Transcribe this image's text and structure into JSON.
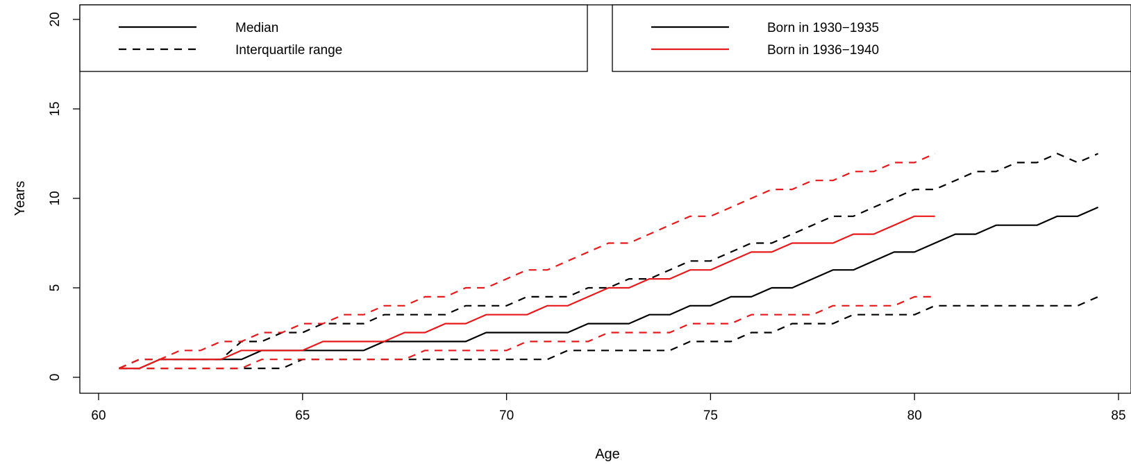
{
  "chart_data": {
    "type": "line",
    "title": "",
    "xlabel": "Age",
    "ylabel": "Years",
    "xlim": [
      60,
      85
    ],
    "ylim": [
      0,
      20
    ],
    "xticks": [
      "60",
      "65",
      "70",
      "75",
      "80",
      "85"
    ],
    "yticks": [
      "0",
      "5",
      "10",
      "15",
      "20"
    ],
    "grid": false,
    "colors": {
      "cohort_1930_1935": "#000000",
      "cohort_1936_1940": "#e8191b"
    },
    "legends": [
      {
        "position": "top-left",
        "entries": [
          {
            "label": "Median",
            "style": "solid",
            "color": "#000000"
          },
          {
            "label": "Interquartile range",
            "style": "dashed",
            "color": "#000000"
          }
        ]
      },
      {
        "position": "top-right",
        "entries": [
          {
            "label": "Born in 1930−1935",
            "style": "solid",
            "color": "#000000"
          },
          {
            "label": "Born in 1936−1940",
            "style": "solid",
            "color": "#e8191b"
          }
        ]
      }
    ],
    "series": [
      {
        "key": "c1930_median",
        "color": "#000000",
        "dash": "solid",
        "points": [
          [
            60.5,
            0.5
          ],
          [
            61,
            0.5
          ],
          [
            61.5,
            1
          ],
          [
            62,
            1
          ],
          [
            62.5,
            1
          ],
          [
            63,
            1
          ],
          [
            63.5,
            1
          ],
          [
            64,
            1.5
          ],
          [
            64.5,
            1.5
          ],
          [
            65,
            1.5
          ],
          [
            65.5,
            1.5
          ],
          [
            66,
            1.5
          ],
          [
            66.5,
            1.5
          ],
          [
            67,
            2
          ],
          [
            67.5,
            2
          ],
          [
            68,
            2
          ],
          [
            68.5,
            2
          ],
          [
            69,
            2
          ],
          [
            69.5,
            2.5
          ],
          [
            70,
            2.5
          ],
          [
            70.5,
            2.5
          ],
          [
            71,
            2.5
          ],
          [
            71.5,
            2.5
          ],
          [
            72,
            3
          ],
          [
            72.5,
            3
          ],
          [
            73,
            3
          ],
          [
            73.5,
            3.5
          ],
          [
            74,
            3.5
          ],
          [
            74.5,
            4
          ],
          [
            75,
            4
          ],
          [
            75.5,
            4.5
          ],
          [
            76,
            4.5
          ],
          [
            76.5,
            5
          ],
          [
            77,
            5
          ],
          [
            77.5,
            5.5
          ],
          [
            78,
            6
          ],
          [
            78.5,
            6
          ],
          [
            79,
            6.5
          ],
          [
            79.5,
            7
          ],
          [
            80,
            7
          ],
          [
            80.5,
            7.5
          ],
          [
            81,
            8
          ],
          [
            81.5,
            8
          ],
          [
            82,
            8.5
          ],
          [
            82.5,
            8.5
          ],
          [
            83,
            8.5
          ],
          [
            83.5,
            9
          ],
          [
            84,
            9
          ],
          [
            84.5,
            9.5
          ]
        ]
      },
      {
        "key": "c1930_q1",
        "color": "#000000",
        "dash": "dashed",
        "points": [
          [
            60.5,
            0.5
          ],
          [
            61,
            0.5
          ],
          [
            61.5,
            0.5
          ],
          [
            62,
            0.5
          ],
          [
            62.5,
            0.5
          ],
          [
            63,
            0.5
          ],
          [
            63.5,
            0.5
          ],
          [
            64,
            0.5
          ],
          [
            64.5,
            0.5
          ],
          [
            65,
            1
          ],
          [
            65.5,
            1
          ],
          [
            66,
            1
          ],
          [
            66.5,
            1
          ],
          [
            67,
            1
          ],
          [
            67.5,
            1
          ],
          [
            68,
            1
          ],
          [
            68.5,
            1
          ],
          [
            69,
            1
          ],
          [
            69.5,
            1
          ],
          [
            70,
            1
          ],
          [
            70.5,
            1
          ],
          [
            71,
            1
          ],
          [
            71.5,
            1.5
          ],
          [
            72,
            1.5
          ],
          [
            72.5,
            1.5
          ],
          [
            73,
            1.5
          ],
          [
            73.5,
            1.5
          ],
          [
            74,
            1.5
          ],
          [
            74.5,
            2
          ],
          [
            75,
            2
          ],
          [
            75.5,
            2
          ],
          [
            76,
            2.5
          ],
          [
            76.5,
            2.5
          ],
          [
            77,
            3
          ],
          [
            77.5,
            3
          ],
          [
            78,
            3
          ],
          [
            78.5,
            3.5
          ],
          [
            79,
            3.5
          ],
          [
            79.5,
            3.5
          ],
          [
            80,
            3.5
          ],
          [
            80.5,
            4
          ],
          [
            81,
            4
          ],
          [
            81.5,
            4
          ],
          [
            82,
            4
          ],
          [
            82.5,
            4
          ],
          [
            83,
            4
          ],
          [
            83.5,
            4
          ],
          [
            84,
            4
          ],
          [
            84.5,
            4.5
          ]
        ]
      },
      {
        "key": "c1930_q3",
        "color": "#000000",
        "dash": "dashed",
        "points": [
          [
            60.5,
            0.5
          ],
          [
            61,
            1
          ],
          [
            61.5,
            1
          ],
          [
            62,
            1
          ],
          [
            62.5,
            1
          ],
          [
            63,
            1
          ],
          [
            63.5,
            2
          ],
          [
            64,
            2
          ],
          [
            64.5,
            2.5
          ],
          [
            65,
            2.5
          ],
          [
            65.5,
            3
          ],
          [
            66,
            3
          ],
          [
            66.5,
            3
          ],
          [
            67,
            3.5
          ],
          [
            67.5,
            3.5
          ],
          [
            68,
            3.5
          ],
          [
            68.5,
            3.5
          ],
          [
            69,
            4
          ],
          [
            69.5,
            4
          ],
          [
            70,
            4
          ],
          [
            70.5,
            4.5
          ],
          [
            71,
            4.5
          ],
          [
            71.5,
            4.5
          ],
          [
            72,
            5
          ],
          [
            72.5,
            5
          ],
          [
            73,
            5.5
          ],
          [
            73.5,
            5.5
          ],
          [
            74,
            6
          ],
          [
            74.5,
            6.5
          ],
          [
            75,
            6.5
          ],
          [
            75.5,
            7
          ],
          [
            76,
            7.5
          ],
          [
            76.5,
            7.5
          ],
          [
            77,
            8
          ],
          [
            77.5,
            8.5
          ],
          [
            78,
            9
          ],
          [
            78.5,
            9
          ],
          [
            79,
            9.5
          ],
          [
            79.5,
            10
          ],
          [
            80,
            10.5
          ],
          [
            80.5,
            10.5
          ],
          [
            81,
            11
          ],
          [
            81.5,
            11.5
          ],
          [
            82,
            11.5
          ],
          [
            82.5,
            12
          ],
          [
            83,
            12
          ],
          [
            83.5,
            12.5
          ],
          [
            84,
            12
          ],
          [
            84.5,
            12.5
          ]
        ]
      },
      {
        "key": "c1936_median",
        "color": "#e8191b",
        "dash": "solid",
        "points": [
          [
            60.5,
            0.5
          ],
          [
            61,
            0.5
          ],
          [
            61.5,
            1
          ],
          [
            62,
            1
          ],
          [
            62.5,
            1
          ],
          [
            63,
            1
          ],
          [
            63.5,
            1.5
          ],
          [
            64,
            1.5
          ],
          [
            64.5,
            1.5
          ],
          [
            65,
            1.5
          ],
          [
            65.5,
            2
          ],
          [
            66,
            2
          ],
          [
            66.5,
            2
          ],
          [
            67,
            2
          ],
          [
            67.5,
            2.5
          ],
          [
            68,
            2.5
          ],
          [
            68.5,
            3
          ],
          [
            69,
            3
          ],
          [
            69.5,
            3.5
          ],
          [
            70,
            3.5
          ],
          [
            70.5,
            3.5
          ],
          [
            71,
            4
          ],
          [
            71.5,
            4
          ],
          [
            72,
            4.5
          ],
          [
            72.5,
            5
          ],
          [
            73,
            5
          ],
          [
            73.5,
            5.5
          ],
          [
            74,
            5.5
          ],
          [
            74.5,
            6
          ],
          [
            75,
            6
          ],
          [
            75.5,
            6.5
          ],
          [
            76,
            7
          ],
          [
            76.5,
            7
          ],
          [
            77,
            7.5
          ],
          [
            77.5,
            7.5
          ],
          [
            78,
            7.5
          ],
          [
            78.5,
            8
          ],
          [
            79,
            8
          ],
          [
            79.5,
            8.5
          ],
          [
            80,
            9
          ],
          [
            80.5,
            9
          ]
        ]
      },
      {
        "key": "c1936_q1",
        "color": "#e8191b",
        "dash": "dashed",
        "points": [
          [
            60.5,
            0.5
          ],
          [
            61,
            0.5
          ],
          [
            61.5,
            0.5
          ],
          [
            62,
            0.5
          ],
          [
            62.5,
            0.5
          ],
          [
            63,
            0.5
          ],
          [
            63.5,
            0.5
          ],
          [
            64,
            1
          ],
          [
            64.5,
            1
          ],
          [
            65,
            1
          ],
          [
            65.5,
            1
          ],
          [
            66,
            1
          ],
          [
            66.5,
            1
          ],
          [
            67,
            1
          ],
          [
            67.5,
            1
          ],
          [
            68,
            1.5
          ],
          [
            68.5,
            1.5
          ],
          [
            69,
            1.5
          ],
          [
            69.5,
            1.5
          ],
          [
            70,
            1.5
          ],
          [
            70.5,
            2
          ],
          [
            71,
            2
          ],
          [
            71.5,
            2
          ],
          [
            72,
            2
          ],
          [
            72.5,
            2.5
          ],
          [
            73,
            2.5
          ],
          [
            73.5,
            2.5
          ],
          [
            74,
            2.5
          ],
          [
            74.5,
            3
          ],
          [
            75,
            3
          ],
          [
            75.5,
            3
          ],
          [
            76,
            3.5
          ],
          [
            76.5,
            3.5
          ],
          [
            77,
            3.5
          ],
          [
            77.5,
            3.5
          ],
          [
            78,
            4
          ],
          [
            78.5,
            4
          ],
          [
            79,
            4
          ],
          [
            79.5,
            4
          ],
          [
            80,
            4.5
          ],
          [
            80.5,
            4.5
          ]
        ]
      },
      {
        "key": "c1936_q3",
        "color": "#e8191b",
        "dash": "dashed",
        "points": [
          [
            60.5,
            0.5
          ],
          [
            61,
            1
          ],
          [
            61.5,
            1
          ],
          [
            62,
            1.5
          ],
          [
            62.5,
            1.5
          ],
          [
            63,
            2
          ],
          [
            63.5,
            2
          ],
          [
            64,
            2.5
          ],
          [
            64.5,
            2.5
          ],
          [
            65,
            3
          ],
          [
            65.5,
            3
          ],
          [
            66,
            3.5
          ],
          [
            66.5,
            3.5
          ],
          [
            67,
            4
          ],
          [
            67.5,
            4
          ],
          [
            68,
            4.5
          ],
          [
            68.5,
            4.5
          ],
          [
            69,
            5
          ],
          [
            69.5,
            5
          ],
          [
            70,
            5.5
          ],
          [
            70.5,
            6
          ],
          [
            71,
            6
          ],
          [
            71.5,
            6.5
          ],
          [
            72,
            7
          ],
          [
            72.5,
            7.5
          ],
          [
            73,
            7.5
          ],
          [
            73.5,
            8
          ],
          [
            74,
            8.5
          ],
          [
            74.5,
            9
          ],
          [
            75,
            9
          ],
          [
            75.5,
            9.5
          ],
          [
            76,
            10
          ],
          [
            76.5,
            10.5
          ],
          [
            77,
            10.5
          ],
          [
            77.5,
            11
          ],
          [
            78,
            11
          ],
          [
            78.5,
            11.5
          ],
          [
            79,
            11.5
          ],
          [
            79.5,
            12
          ],
          [
            80,
            12
          ],
          [
            80.5,
            12.5
          ]
        ]
      }
    ]
  }
}
